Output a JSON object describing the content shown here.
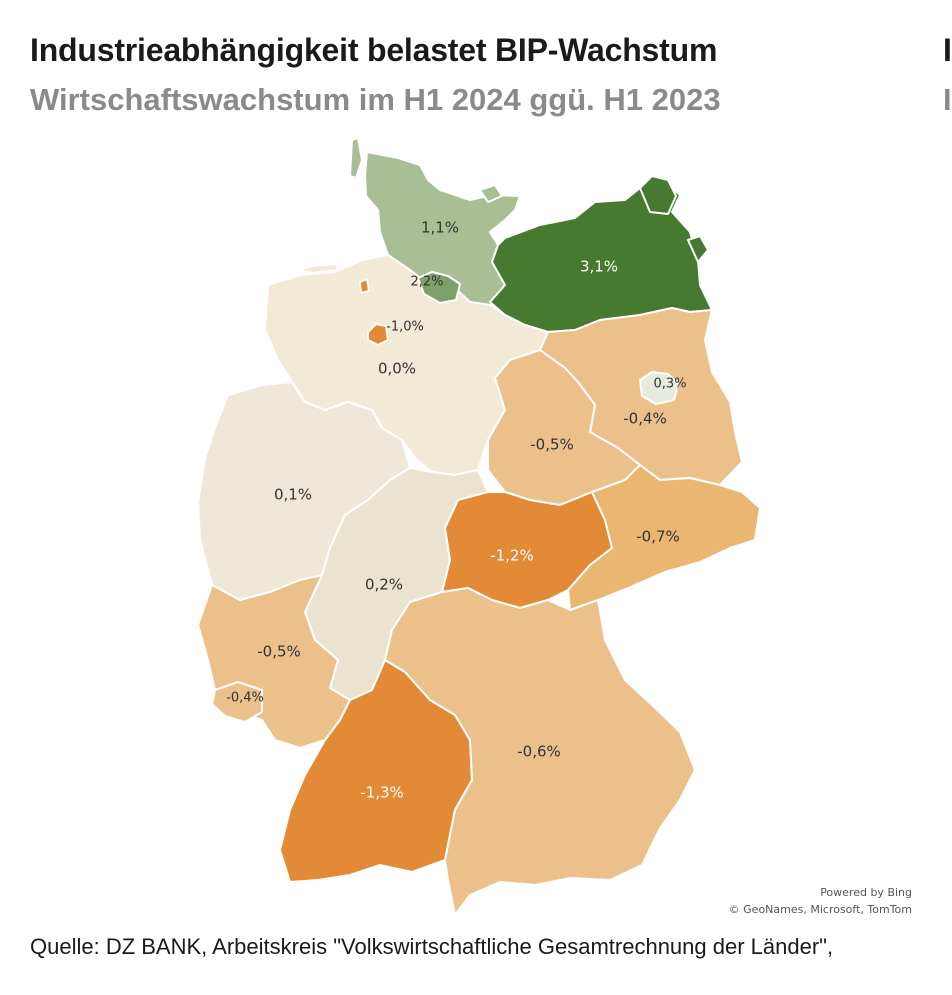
{
  "title": "Industrieabhängigkeit belastet BIP-Wachstum",
  "subtitle": "Wirtschaftswachstum im H1 2024 ggü. H1 2023",
  "cut_title_char": "I",
  "cut_subtitle_char": "I",
  "attribution": {
    "line1": "Powered by Bing",
    "line2": "© GeoNames, Microsoft, TomTom"
  },
  "source": "Quelle: DZ BANK, Arbeitskreis \"Volkswirtschaftliche Gesamtrechnung der Länder\",",
  "chart_data": {
    "type": "choropleth",
    "title": "Industrieabhängigkeit belastet BIP-Wachstum",
    "subtitle": "Wirtschaftswachstum im H1 2024 ggü. H1 2023",
    "unit": "%",
    "regions": [
      {
        "id": "sh",
        "value": 1.1,
        "label": "1,1%",
        "color": "#a8bf95"
      },
      {
        "id": "mv",
        "value": 3.1,
        "label": "3,1%",
        "color": "#457a30"
      },
      {
        "id": "hh",
        "value": 2.2,
        "label": "2,2%",
        "color": "#7ea06a"
      },
      {
        "id": "hb",
        "value": -1.0,
        "label": "-1,0%",
        "color": "#e38a37"
      },
      {
        "id": "ni",
        "value": 0.0,
        "label": "0,0%",
        "color": "#f3e9d7"
      },
      {
        "id": "be",
        "value": 0.3,
        "label": "0,3%",
        "color": "#e6ebdd"
      },
      {
        "id": "bb",
        "value": -0.4,
        "label": "-0,4%",
        "color": "#ecc08a"
      },
      {
        "id": "st",
        "value": -0.5,
        "label": "-0,5%",
        "color": "#ecc08a"
      },
      {
        "id": "nw",
        "value": 0.1,
        "label": "0,1%",
        "color": "#efe8d8"
      },
      {
        "id": "he",
        "value": 0.2,
        "label": "0,2%",
        "color": "#e9e3cf"
      },
      {
        "id": "th",
        "value": -1.2,
        "label": "-1,2%",
        "color": "#e38a37"
      },
      {
        "id": "sn",
        "value": -0.7,
        "label": "-0,7%",
        "color": "#ebb572"
      },
      {
        "id": "rp",
        "value": -0.5,
        "label": "-0,5%",
        "color": "#ecc08a"
      },
      {
        "id": "sl",
        "value": -0.4,
        "label": "-0,4%",
        "color": "#ecc08a"
      },
      {
        "id": "bw",
        "value": -1.3,
        "label": "-1,3%",
        "color": "#e38a37"
      },
      {
        "id": "by",
        "value": -0.6,
        "label": "-0,6%",
        "color": "#ecc08a"
      }
    ]
  }
}
